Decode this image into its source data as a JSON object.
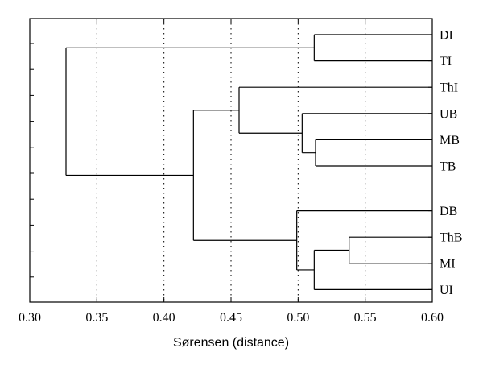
{
  "chart_data": {
    "type": "dendrogram",
    "xlabel": "Sørensen (distance)",
    "xlim": [
      0.3,
      0.6
    ],
    "xticks": [
      0.3,
      0.35,
      0.4,
      0.45,
      0.5,
      0.55,
      0.6
    ],
    "xtick_labels": [
      "0.30",
      "0.35",
      "0.40",
      "0.45",
      "0.50",
      "0.55",
      "0.60"
    ],
    "grid": "vertical-dotted",
    "leaf_axis": "right",
    "leaves": [
      "DI",
      "TI",
      "ThI",
      "UB",
      "MB",
      "TB",
      "DB",
      "ThB",
      "MI",
      "UI"
    ],
    "merges": [
      {
        "id": "c1",
        "children": [
          "DI",
          "TI"
        ],
        "height": 0.512
      },
      {
        "id": "c2",
        "children": [
          "MB",
          "TB"
        ],
        "height": 0.513
      },
      {
        "id": "c3",
        "children": [
          "UB",
          "c2"
        ],
        "height": 0.503
      },
      {
        "id": "c4",
        "children": [
          "ThI",
          "c3"
        ],
        "height": 0.456
      },
      {
        "id": "c5",
        "children": [
          "ThB",
          "MI"
        ],
        "height": 0.538
      },
      {
        "id": "c6",
        "children": [
          "c5",
          "UI"
        ],
        "height": 0.512
      },
      {
        "id": "c7",
        "children": [
          "DB",
          "c6"
        ],
        "height": 0.499
      },
      {
        "id": "c8",
        "children": [
          "c4",
          "c7"
        ],
        "height": 0.422
      },
      {
        "id": "c9",
        "children": [
          "c1",
          "c8"
        ],
        "height": 0.327
      }
    ]
  }
}
